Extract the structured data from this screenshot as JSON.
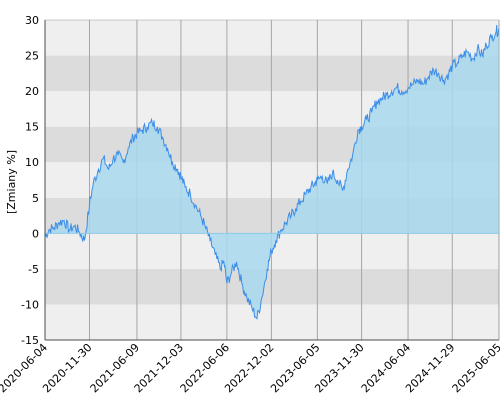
{
  "chart_data": {
    "type": "area",
    "title": "",
    "xlabel": "",
    "ylabel": "[Zmiany %]",
    "ylim": [
      -15,
      30
    ],
    "yticks": [
      -15,
      -10,
      -5,
      0,
      5,
      10,
      15,
      20,
      25,
      30
    ],
    "xlim": [
      "2020-06-04",
      "2025-06-05"
    ],
    "xticks": [
      "2020-06-04",
      "2020-11-30",
      "2021-06-09",
      "2021-12-03",
      "2022-06-06",
      "2022-12-02",
      "2023-06-05",
      "2023-11-30",
      "2024-06-04",
      "2024-11-29",
      "2025-06-05"
    ],
    "grid": true,
    "legend": "none",
    "colors": {
      "line": "#3d8ee8",
      "fill": "#a8d8ee",
      "band_light": "#efefef",
      "band_dark": "#dcdcdc",
      "vgrid": "#a6a6a6",
      "axis": "#000000"
    },
    "series": [
      {
        "x": [
          "2020-06-04",
          "2020-06-20",
          "2020-07-10",
          "2020-07-30",
          "2020-08-20",
          "2020-09-10",
          "2020-09-30",
          "2020-10-20",
          "2020-11-10",
          "2020-11-30",
          "2020-12-15",
          "2021-01-05",
          "2021-01-25",
          "2021-02-15",
          "2021-03-05",
          "2021-03-25",
          "2021-04-15",
          "2021-05-05",
          "2021-05-25",
          "2021-06-09",
          "2021-06-30",
          "2021-07-20",
          "2021-08-10",
          "2021-08-30",
          "2021-09-20",
          "2021-10-10",
          "2021-10-30",
          "2021-11-20",
          "2021-12-03",
          "2021-12-20",
          "2022-01-10",
          "2022-01-30",
          "2022-02-20",
          "2022-03-10",
          "2022-03-30",
          "2022-04-20",
          "2022-05-10",
          "2022-05-25",
          "2022-06-06",
          "2022-06-25",
          "2022-07-15",
          "2022-08-05",
          "2022-08-25",
          "2022-09-15",
          "2022-10-05",
          "2022-10-25",
          "2022-11-15",
          "2022-12-02",
          "2022-12-20",
          "2023-01-10",
          "2023-01-30",
          "2023-02-20",
          "2023-03-10",
          "2023-03-30",
          "2023-04-20",
          "2023-05-10",
          "2023-05-25",
          "2023-06-05",
          "2023-06-25",
          "2023-07-15",
          "2023-08-05",
          "2023-08-25",
          "2023-09-15",
          "2023-10-05",
          "2023-10-25",
          "2023-11-15",
          "2023-11-30",
          "2023-12-20",
          "2024-01-10",
          "2024-01-30",
          "2024-02-20",
          "2024-03-10",
          "2024-03-30",
          "2024-04-20",
          "2024-05-10",
          "2024-06-04",
          "2024-06-25",
          "2024-07-15",
          "2024-08-05",
          "2024-08-25",
          "2024-09-15",
          "2024-10-05",
          "2024-10-25",
          "2024-11-15",
          "2024-11-29",
          "2024-12-20",
          "2025-01-10",
          "2025-01-30",
          "2025-02-20",
          "2025-03-10",
          "2025-03-30",
          "2025-04-15",
          "2025-05-05",
          "2025-05-25",
          "2025-06-05"
        ],
        "values": [
          -0.5,
          0.5,
          0.8,
          1.5,
          1.8,
          0.5,
          1.0,
          0.2,
          -1.0,
          4.0,
          7.0,
          9.0,
          10.5,
          9.0,
          10.5,
          11.0,
          10.0,
          12.0,
          13.5,
          14.0,
          14.5,
          15.0,
          15.5,
          15.0,
          13.5,
          12.0,
          10.0,
          9.0,
          8.0,
          6.5,
          5.5,
          4.0,
          2.5,
          1.0,
          -1.0,
          -3.0,
          -5.0,
          -4.0,
          -7.0,
          -5.5,
          -4.0,
          -7.0,
          -9.0,
          -10.5,
          -12.0,
          -9.0,
          -5.0,
          -2.5,
          -1.0,
          0.5,
          1.5,
          2.5,
          3.5,
          4.5,
          5.5,
          6.5,
          7.0,
          7.5,
          8.0,
          7.0,
          8.5,
          7.5,
          6.0,
          9.0,
          11.0,
          14.5,
          15.0,
          16.0,
          17.0,
          18.5,
          19.0,
          19.5,
          20.0,
          20.5,
          20.0,
          20.5,
          21.0,
          21.5,
          21.0,
          22.0,
          23.0,
          22.5,
          21.5,
          22.5,
          23.5,
          24.0,
          25.0,
          25.5,
          24.5,
          26.0,
          25.0,
          26.5,
          27.5,
          28.5,
          28.5
        ]
      }
    ]
  }
}
